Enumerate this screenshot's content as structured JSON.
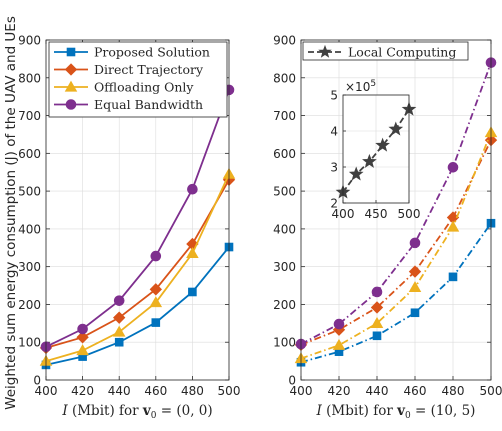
{
  "ylabel": "Weighted sum energy consumption (J) of the UAV and UEs",
  "chart_data": [
    {
      "type": "line",
      "xlabel": "I (Mbit) for v0 = (0,0)",
      "xlabel_parts": {
        "var": "I",
        "unit": " (Mbit) for ",
        "vec": "v",
        "sub": "0",
        "eq": " = (0, 0)"
      },
      "xlim": [
        400,
        500
      ],
      "ylim": [
        0,
        900
      ],
      "x": [
        400,
        420,
        440,
        460,
        480,
        500
      ],
      "xticks": [
        "400",
        "420",
        "440",
        "460",
        "480",
        "500"
      ],
      "yticks": [
        "0",
        "100",
        "200",
        "300",
        "400",
        "500",
        "600",
        "700",
        "800",
        "900"
      ],
      "grid": true,
      "legend_position": "top-left",
      "series": [
        {
          "name": "Proposed Solution",
          "color": "#0072BD",
          "marker": "square",
          "dash": "solid",
          "values": [
            40,
            62,
            100,
            152,
            233,
            352
          ]
        },
        {
          "name": "Direct Trajectory",
          "color": "#D95319",
          "marker": "diamond",
          "dash": "solid",
          "values": [
            85,
            113,
            165,
            240,
            360,
            530
          ]
        },
        {
          "name": "Offloading Only",
          "color": "#EDB120",
          "marker": "triangle",
          "dash": "solid",
          "values": [
            50,
            78,
            127,
            205,
            335,
            545
          ]
        },
        {
          "name": "Equal Bandwidth",
          "color": "#7E2F8E",
          "marker": "circle",
          "dash": "solid",
          "values": [
            88,
            135,
            210,
            328,
            505,
            768
          ]
        }
      ]
    },
    {
      "type": "line",
      "xlabel": "I (Mbit) for v0 = (10,5)",
      "xlabel_parts": {
        "var": "I",
        "unit": " (Mbit) for ",
        "vec": "v",
        "sub": "0",
        "eq": " = (10, 5)"
      },
      "xlim": [
        400,
        500
      ],
      "ylim": [
        0,
        900
      ],
      "x": [
        400,
        420,
        440,
        460,
        480,
        500
      ],
      "xticks": [
        "400",
        "420",
        "440",
        "460",
        "480",
        "500"
      ],
      "yticks": [
        "0",
        "100",
        "200",
        "300",
        "400",
        "500",
        "600",
        "700",
        "800",
        "900"
      ],
      "grid": true,
      "legend_position": "top-right",
      "series": [
        {
          "name": "",
          "color": "#0072BD",
          "marker": "square",
          "dash": "dashdot",
          "values": [
            47,
            75,
            117,
            178,
            273,
            415
          ]
        },
        {
          "name": "",
          "color": "#D95319",
          "marker": "diamond",
          "dash": "dashdot",
          "values": [
            93,
            133,
            192,
            287,
            430,
            635
          ]
        },
        {
          "name": "",
          "color": "#EDB120",
          "marker": "triangle",
          "dash": "dashdot",
          "values": [
            57,
            92,
            150,
            245,
            405,
            655
          ]
        },
        {
          "name": "",
          "color": "#7E2F8E",
          "marker": "circle",
          "dash": "dashdot",
          "values": [
            95,
            148,
            233,
            363,
            563,
            840
          ]
        }
      ],
      "legend_only": [
        {
          "name": "Local Computing",
          "color": "#404040",
          "marker": "star",
          "dash": "dashed"
        }
      ],
      "inset": {
        "type": "line",
        "x": [
          400,
          420,
          440,
          460,
          480,
          500
        ],
        "values": [
          2.3,
          2.8,
          3.15,
          3.6,
          4.05,
          4.6
        ],
        "xlim": [
          400,
          500
        ],
        "ylim": [
          2,
          5
        ],
        "xticks": [
          "400",
          "450",
          "500"
        ],
        "yticks": [
          "2",
          "3",
          "4",
          "5"
        ],
        "exponent_base": "×10",
        "exponent_power": "5",
        "color": "#404040",
        "marker": "star",
        "dash": "dashed"
      }
    }
  ]
}
